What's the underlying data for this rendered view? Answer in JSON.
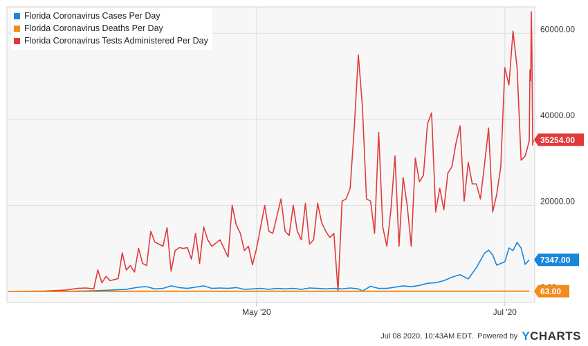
{
  "chart_data": {
    "type": "line",
    "title": "",
    "xlabel": "",
    "ylabel": "",
    "x_range": [
      "2020-03-01",
      "2020-07-08"
    ],
    "ylim": [
      0,
      65500
    ],
    "y_ticks": [
      {
        "value": 0,
        "label": "0.00"
      },
      {
        "value": 20000,
        "label": "20000.00"
      },
      {
        "value": 40000,
        "label": "40000.00"
      },
      {
        "value": 60000,
        "label": "60000.00"
      }
    ],
    "x_ticks": [
      {
        "date": "2020-05-01",
        "label": "May '20"
      },
      {
        "date": "2020-07-01",
        "label": "Jul '20"
      }
    ],
    "grid": true,
    "legend_position": "top-left",
    "series": [
      {
        "name": "Florida Coronavirus Cases Per Day",
        "color": "#1a86d8",
        "end_label": "7347.00",
        "points": [
          [
            "2020-03-01",
            0
          ],
          [
            "2020-03-10",
            0
          ],
          [
            "2020-03-18",
            60
          ],
          [
            "2020-03-22",
            150
          ],
          [
            "2020-03-26",
            300
          ],
          [
            "2020-03-30",
            500
          ],
          [
            "2020-04-02",
            1000
          ],
          [
            "2020-04-04",
            1100
          ],
          [
            "2020-04-06",
            600
          ],
          [
            "2020-04-08",
            700
          ],
          [
            "2020-04-10",
            1300
          ],
          [
            "2020-04-12",
            900
          ],
          [
            "2020-04-14",
            700
          ],
          [
            "2020-04-16",
            1000
          ],
          [
            "2020-04-18",
            1300
          ],
          [
            "2020-04-20",
            700
          ],
          [
            "2020-04-22",
            800
          ],
          [
            "2020-04-24",
            700
          ],
          [
            "2020-04-26",
            900
          ],
          [
            "2020-04-28",
            500
          ],
          [
            "2020-04-30",
            600
          ],
          [
            "2020-05-02",
            700
          ],
          [
            "2020-05-04",
            500
          ],
          [
            "2020-05-06",
            700
          ],
          [
            "2020-05-08",
            600
          ],
          [
            "2020-05-10",
            700
          ],
          [
            "2020-05-12",
            500
          ],
          [
            "2020-05-14",
            800
          ],
          [
            "2020-05-16",
            700
          ],
          [
            "2020-05-18",
            600
          ],
          [
            "2020-05-20",
            700
          ],
          [
            "2020-05-22",
            600
          ],
          [
            "2020-05-24",
            800
          ],
          [
            "2020-05-26",
            600
          ],
          [
            "2020-05-27",
            100
          ],
          [
            "2020-05-29",
            1200
          ],
          [
            "2020-05-31",
            700
          ],
          [
            "2020-06-02",
            700
          ],
          [
            "2020-06-04",
            1000
          ],
          [
            "2020-06-06",
            1300
          ],
          [
            "2020-06-08",
            1100
          ],
          [
            "2020-06-10",
            1400
          ],
          [
            "2020-06-12",
            1900
          ],
          [
            "2020-06-14",
            2000
          ],
          [
            "2020-06-16",
            2500
          ],
          [
            "2020-06-18",
            3300
          ],
          [
            "2020-06-20",
            3900
          ],
          [
            "2020-06-22",
            2900
          ],
          [
            "2020-06-24",
            5500
          ],
          [
            "2020-06-26",
            8900
          ],
          [
            "2020-06-27",
            9600
          ],
          [
            "2020-06-28",
            8500
          ],
          [
            "2020-06-29",
            6100
          ],
          [
            "2020-06-30",
            6500
          ],
          [
            "2020-07-01",
            6900
          ],
          [
            "2020-07-02",
            10100
          ],
          [
            "2020-07-03",
            9500
          ],
          [
            "2020-07-04",
            11400
          ],
          [
            "2020-07-05",
            10100
          ],
          [
            "2020-07-06",
            6300
          ],
          [
            "2020-07-07",
            7347
          ]
        ]
      },
      {
        "name": "Florida Coronavirus Deaths Per Day",
        "color": "#f28c1c",
        "end_label": "63.00",
        "points": [
          [
            "2020-03-01",
            0
          ],
          [
            "2020-03-20",
            5
          ],
          [
            "2020-04-01",
            40
          ],
          [
            "2020-04-20",
            50
          ],
          [
            "2020-05-10",
            40
          ],
          [
            "2020-06-01",
            35
          ],
          [
            "2020-06-20",
            40
          ],
          [
            "2020-07-01",
            60
          ],
          [
            "2020-07-07",
            63
          ]
        ]
      },
      {
        "name": "Florida Coronavirus Tests Administered Per Day",
        "color": "#e03a3a",
        "end_label": "35254.00",
        "points": [
          [
            "2020-03-01",
            0
          ],
          [
            "2020-03-10",
            100
          ],
          [
            "2020-03-15",
            300
          ],
          [
            "2020-03-18",
            700
          ],
          [
            "2020-03-20",
            800
          ],
          [
            "2020-03-22",
            600
          ],
          [
            "2020-03-23",
            5000
          ],
          [
            "2020-03-24",
            2000
          ],
          [
            "2020-03-25",
            3500
          ],
          [
            "2020-03-26",
            2500
          ],
          [
            "2020-03-28",
            3000
          ],
          [
            "2020-03-29",
            9000
          ],
          [
            "2020-03-30",
            5000
          ],
          [
            "2020-03-31",
            6000
          ],
          [
            "2020-04-01",
            4500
          ],
          [
            "2020-04-02",
            10000
          ],
          [
            "2020-04-03",
            6500
          ],
          [
            "2020-04-04",
            6000
          ],
          [
            "2020-04-05",
            14000
          ],
          [
            "2020-04-06",
            11500
          ],
          [
            "2020-04-07",
            11000
          ],
          [
            "2020-04-08",
            10500
          ],
          [
            "2020-04-09",
            14800
          ],
          [
            "2020-04-10",
            4700
          ],
          [
            "2020-04-11",
            9500
          ],
          [
            "2020-04-12",
            10200
          ],
          [
            "2020-04-13",
            10000
          ],
          [
            "2020-04-14",
            10200
          ],
          [
            "2020-04-15",
            7500
          ],
          [
            "2020-04-16",
            13500
          ],
          [
            "2020-04-17",
            6500
          ],
          [
            "2020-04-18",
            15000
          ],
          [
            "2020-04-19",
            12000
          ],
          [
            "2020-04-20",
            10500
          ],
          [
            "2020-04-22",
            12000
          ],
          [
            "2020-04-24",
            8000
          ],
          [
            "2020-04-25",
            20000
          ],
          [
            "2020-04-26",
            15500
          ],
          [
            "2020-04-27",
            13500
          ],
          [
            "2020-04-28",
            9500
          ],
          [
            "2020-04-29",
            10500
          ],
          [
            "2020-04-30",
            6200
          ],
          [
            "2020-05-01",
            10000
          ],
          [
            "2020-05-03",
            20000
          ],
          [
            "2020-05-04",
            14000
          ],
          [
            "2020-05-05",
            13500
          ],
          [
            "2020-05-07",
            21500
          ],
          [
            "2020-05-08",
            14000
          ],
          [
            "2020-05-09",
            13000
          ],
          [
            "2020-05-10",
            20000
          ],
          [
            "2020-05-11",
            14000
          ],
          [
            "2020-05-12",
            12000
          ],
          [
            "2020-05-13",
            20500
          ],
          [
            "2020-05-14",
            11000
          ],
          [
            "2020-05-15",
            12000
          ],
          [
            "2020-05-16",
            20500
          ],
          [
            "2020-05-17",
            16000
          ],
          [
            "2020-05-18",
            14000
          ],
          [
            "2020-05-19",
            12500
          ],
          [
            "2020-05-20",
            13500
          ],
          [
            "2020-05-21",
            0
          ],
          [
            "2020-05-22",
            21000
          ],
          [
            "2020-05-23",
            21500
          ],
          [
            "2020-05-24",
            24000
          ],
          [
            "2020-05-25",
            38000
          ],
          [
            "2020-05-26",
            55000
          ],
          [
            "2020-05-27",
            43000
          ],
          [
            "2020-05-28",
            21500
          ],
          [
            "2020-05-29",
            21000
          ],
          [
            "2020-05-30",
            13500
          ],
          [
            "2020-05-31",
            37000
          ],
          [
            "2020-06-01",
            15000
          ],
          [
            "2020-06-02",
            10500
          ],
          [
            "2020-06-03",
            19000
          ],
          [
            "2020-06-04",
            31500
          ],
          [
            "2020-06-05",
            10500
          ],
          [
            "2020-06-06",
            26500
          ],
          [
            "2020-06-07",
            20000
          ],
          [
            "2020-06-08",
            10500
          ],
          [
            "2020-06-09",
            31000
          ],
          [
            "2020-06-10",
            25500
          ],
          [
            "2020-06-11",
            27000
          ],
          [
            "2020-06-12",
            39000
          ],
          [
            "2020-06-13",
            41500
          ],
          [
            "2020-06-14",
            18500
          ],
          [
            "2020-06-15",
            24000
          ],
          [
            "2020-06-16",
            19000
          ],
          [
            "2020-06-17",
            27500
          ],
          [
            "2020-06-18",
            29000
          ],
          [
            "2020-06-19",
            34500
          ],
          [
            "2020-06-20",
            38500
          ],
          [
            "2020-06-21",
            21000
          ],
          [
            "2020-06-22",
            30000
          ],
          [
            "2020-06-23",
            25000
          ],
          [
            "2020-06-24",
            25000
          ],
          [
            "2020-06-25",
            21500
          ],
          [
            "2020-06-26",
            29500
          ],
          [
            "2020-06-27",
            38000
          ],
          [
            "2020-06-28",
            18500
          ],
          [
            "2020-06-29",
            22500
          ],
          [
            "2020-06-30",
            29000
          ],
          [
            "2020-07-01",
            52000
          ],
          [
            "2020-07-02",
            48000
          ],
          [
            "2020-07-03",
            60500
          ],
          [
            "2020-07-04",
            52000
          ],
          [
            "2020-07-05",
            30500
          ],
          [
            "2020-07-06",
            31500
          ],
          [
            "2020-07-07",
            35000
          ],
          [
            "2020-07-08",
            51500
          ],
          [
            "2020-07-08",
            49000
          ],
          [
            "2020-07-08",
            65000
          ],
          [
            "2020-07-08",
            55000
          ],
          [
            "2020-07-08",
            34000
          ],
          [
            "2020-07-08",
            35254
          ]
        ]
      }
    ]
  },
  "footer": {
    "timestamp": "Jul 08 2020, 10:43AM EDT.",
    "powered_by": "Powered by",
    "brand_y": "Y",
    "brand_rest": "CHARTS"
  }
}
